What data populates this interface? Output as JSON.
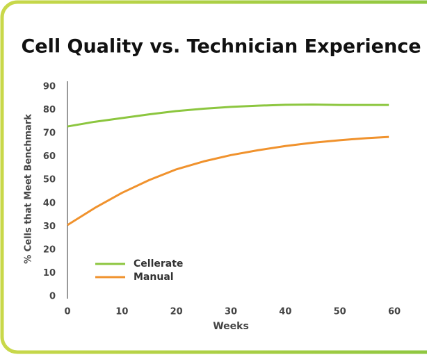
{
  "chart_data": {
    "type": "line",
    "title": "Cell Quality vs. Technician Experience",
    "x_label": "Weeks",
    "y_label": "% Cells that Meet Benchmark",
    "x": [
      0,
      5,
      10,
      15,
      20,
      25,
      30,
      35,
      40,
      45,
      50,
      55,
      59
    ],
    "series": [
      {
        "name": "Cellerate",
        "color": "#8cc63f",
        "values": [
          73,
          75,
          76.6,
          78.2,
          79.6,
          80.6,
          81.4,
          81.9,
          82.3,
          82.4,
          82.2,
          82.2,
          82.2
        ]
      },
      {
        "name": "Manual",
        "color": "#f0922d",
        "values": [
          30.7,
          38,
          44.5,
          50,
          54.6,
          58,
          60.7,
          62.8,
          64.6,
          66,
          67.1,
          68,
          68.5
        ]
      }
    ],
    "xlim": [
      0,
      60
    ],
    "xticks": [
      0,
      10,
      20,
      30,
      40,
      50,
      60
    ],
    "ylim": [
      0,
      90
    ],
    "yticks": [
      0,
      10,
      20,
      30,
      40,
      50,
      60,
      70,
      80,
      90
    ],
    "grid": false,
    "legend": "lower left"
  }
}
